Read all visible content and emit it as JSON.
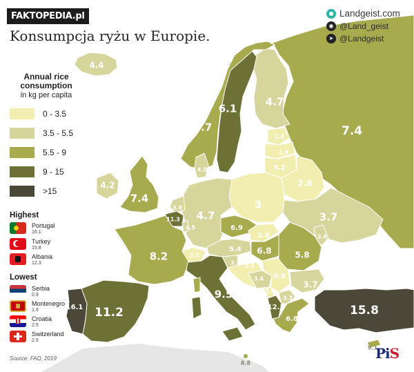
{
  "brand": "FAKTOPEDIA.pl",
  "title": "Konsumpcja ryżu w Europie.",
  "social": [
    {
      "icon": "landgeist-icon",
      "text": "Landgeist.com",
      "color": "#2bb5a5"
    },
    {
      "icon": "instagram-icon",
      "text": "@Land_geist",
      "color": "#222222"
    },
    {
      "icon": "twitter-icon",
      "text": "@Landgeist",
      "color": "#222222"
    }
  ],
  "legend": {
    "title": "Annual rice consumption",
    "subtitle": "in kg per capita",
    "classes": [
      {
        "label": "0  - 3.5",
        "color": "#f2eeb0"
      },
      {
        "label": "3.5 - 5.5",
        "color": "#d6d59b"
      },
      {
        "label": "5.5 -  9",
        "color": "#a8aa4e"
      },
      {
        "label": "9  - 15",
        "color": "#6d7135"
      },
      {
        "label": ">15",
        "color": "#4b4739"
      }
    ]
  },
  "highest": {
    "heading": "Highest",
    "items": [
      {
        "name": "Portugal",
        "value": "16.1",
        "flag": "portugal-flag-icon"
      },
      {
        "name": "Turkey",
        "value": "15.8",
        "flag": "turkey-flag-icon"
      },
      {
        "name": "Albania",
        "value": "12.3",
        "flag": "albania-flag-icon"
      }
    ]
  },
  "lowest": {
    "heading": "Lowest",
    "items": [
      {
        "name": "Serbia",
        "value": "0.9",
        "flag": "serbia-flag-icon"
      },
      {
        "name": "Montenegro",
        "value": "1.9",
        "flag": "montenegro-flag-icon"
      },
      {
        "name": "Croatia",
        "value": "2.5",
        "flag": "croatia-flag-icon"
      },
      {
        "name": "Switzerland",
        "value": "2.5",
        "flag": "switzerland-flag-icon"
      }
    ]
  },
  "map_values": {
    "iceland": "4.4",
    "norway": "4.7",
    "sweden": "6.1",
    "finland": "4.7",
    "russia": "7.4",
    "estonia": "2.6",
    "latvia": "2.9",
    "lithuania": "3.2",
    "belarus": "2.8",
    "denmark": "4.9",
    "ireland": "4.2",
    "uk": "7.4",
    "netherlands": "3.9",
    "belgium": "11.3",
    "luxembourg": "4.5",
    "germany": "4.7",
    "poland": "3",
    "ukraine": "3.7",
    "moldova": "3.6",
    "czechia": "6.9",
    "slovakia": "2.6",
    "austria": "5.4",
    "hungary": "6.8",
    "romania": "5.8",
    "france": "8.2",
    "switzerland": "2.5",
    "slovenia": "3.8",
    "croatia": "2.5",
    "bosnia": "3.4",
    "serbia": "0.9",
    "montenegro": "1.9",
    "albania": "12.3",
    "north_macedonia": "3.7",
    "bulgaria": "3.7",
    "italy": "9.5",
    "spain": "11.2",
    "portugal": "16.1",
    "greece": "6.8",
    "turkey": "15.8",
    "malta": "8.8",
    "cyprus": "9.1"
  },
  "source": "Source: FAO, 2019",
  "watermark": {
    "a": "Pi",
    "b": "S"
  }
}
